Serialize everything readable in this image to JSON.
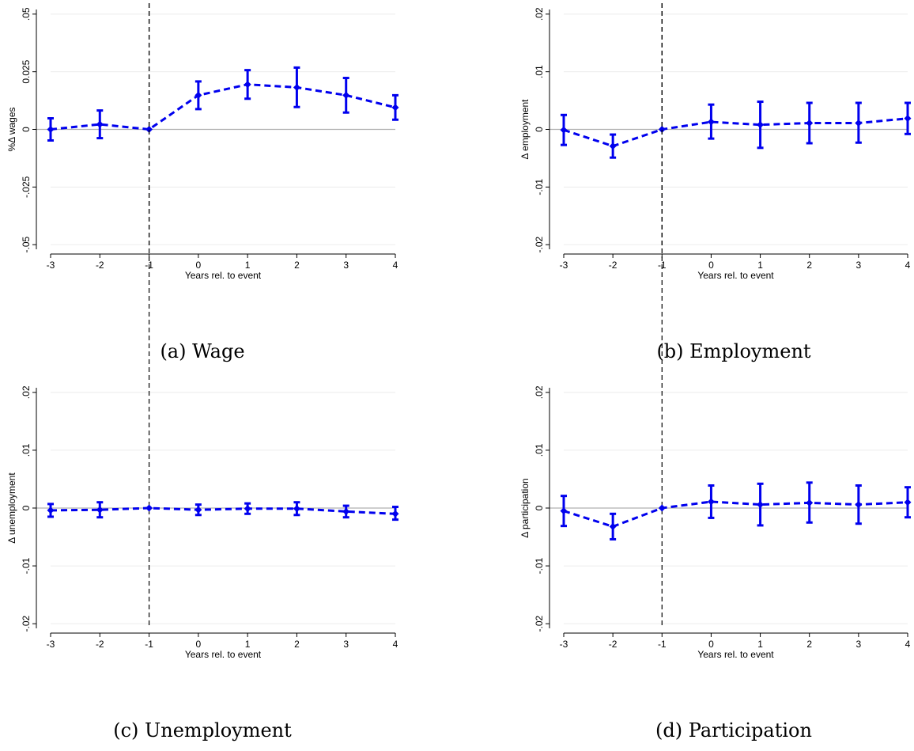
{
  "chart_data": [
    {
      "type": "line",
      "caption": "(a) Wage",
      "ylabel": "%Δ wages",
      "xlabel": "Years rel. to event",
      "x": [
        -3,
        -2,
        -1,
        0,
        1,
        2,
        3,
        4
      ],
      "xticks": [
        "-3",
        "-2",
        "-1",
        "0",
        "1",
        "2",
        "3",
        "4"
      ],
      "yticks": [
        {
          "v": -0.05,
          "t": "-.05"
        },
        {
          "v": -0.025,
          "t": "-.025"
        },
        {
          "v": 0,
          "t": "0"
        },
        {
          "v": 0.025,
          "t": "0.025"
        },
        {
          "v": 0.05,
          "t": ".05"
        }
      ],
      "ylim": [
        -0.052,
        0.052
      ],
      "event_line_x": -1,
      "reference_line_y": 0,
      "series": [
        {
          "estimate": [
            0.0,
            0.0022,
            0.0,
            0.0148,
            0.0195,
            0.0182,
            0.0148,
            0.0095
          ],
          "ci_low": [
            -0.0048,
            -0.0038,
            0.0,
            0.0088,
            0.0133,
            0.0097,
            0.0073,
            0.0042
          ],
          "ci_high": [
            0.0048,
            0.0082,
            0.0,
            0.0208,
            0.0257,
            0.0268,
            0.0223,
            0.0148
          ]
        }
      ]
    },
    {
      "type": "line",
      "caption": "(b) Employment",
      "ylabel": "Δ employment",
      "xlabel": "Years rel. to event",
      "x": [
        -3,
        -2,
        -1,
        0,
        1,
        2,
        3,
        4
      ],
      "xticks": [
        "-3",
        "-2",
        "-1",
        "0",
        "1",
        "2",
        "3",
        "4"
      ],
      "yticks": [
        {
          "v": -0.02,
          "t": "-.02"
        },
        {
          "v": -0.01,
          "t": "-.01"
        },
        {
          "v": 0,
          "t": "0"
        },
        {
          "v": 0.01,
          "t": ".01"
        },
        {
          "v": 0.02,
          "t": ".02"
        }
      ],
      "ylim": [
        -0.0208,
        0.0208
      ],
      "event_line_x": -1,
      "reference_line_y": 0,
      "series": [
        {
          "estimate": [
            -0.0001,
            -0.0029,
            0.0,
            0.0013,
            0.0008,
            0.0011,
            0.0011,
            0.0019
          ],
          "ci_low": [
            -0.0027,
            -0.0049,
            0.0,
            -0.0016,
            -0.0032,
            -0.0024,
            -0.0023,
            -0.0008
          ],
          "ci_high": [
            0.0025,
            -0.0009,
            0.0,
            0.0043,
            0.0048,
            0.0046,
            0.0046,
            0.0046
          ]
        }
      ]
    },
    {
      "type": "line",
      "caption": "(c) Unemployment",
      "ylabel": "Δ unemployment",
      "xlabel": "Years rel. to event",
      "x": [
        -3,
        -2,
        -1,
        0,
        1,
        2,
        3,
        4
      ],
      "xticks": [
        "-3",
        "-2",
        "-1",
        "0",
        "1",
        "2",
        "3",
        "4"
      ],
      "yticks": [
        {
          "v": -0.02,
          "t": "-.02"
        },
        {
          "v": -0.01,
          "t": "-.01"
        },
        {
          "v": 0,
          "t": "0"
        },
        {
          "v": 0.01,
          "t": ".01"
        },
        {
          "v": 0.02,
          "t": ".02"
        }
      ],
      "ylim": [
        -0.0208,
        0.0208
      ],
      "event_line_x": -1,
      "reference_line_y": 0,
      "series": [
        {
          "estimate": [
            -0.0004,
            -0.0003,
            0.0,
            -0.0003,
            -0.0001,
            -0.0001,
            -0.0006,
            -0.001
          ],
          "ci_low": [
            -0.0015,
            -0.0016,
            0.0,
            -0.0012,
            -0.001,
            -0.0012,
            -0.0016,
            -0.002
          ],
          "ci_high": [
            0.0007,
            0.001,
            0.0,
            0.0006,
            0.0008,
            0.001,
            0.0004,
            0.0002
          ]
        }
      ]
    },
    {
      "type": "line",
      "caption": "(d) Participation",
      "ylabel": "Δ participation",
      "xlabel": "Years rel. to event",
      "x": [
        -3,
        -2,
        -1,
        0,
        1,
        2,
        3,
        4
      ],
      "xticks": [
        "-3",
        "-2",
        "-1",
        "0",
        "1",
        "2",
        "3",
        "4"
      ],
      "yticks": [
        {
          "v": -0.02,
          "t": "-.02"
        },
        {
          "v": -0.01,
          "t": "-.01"
        },
        {
          "v": 0,
          "t": "0"
        },
        {
          "v": 0.01,
          "t": ".01"
        },
        {
          "v": 0.02,
          "t": ".02"
        }
      ],
      "ylim": [
        -0.0208,
        0.0208
      ],
      "event_line_x": -1,
      "reference_line_y": 0,
      "series": [
        {
          "estimate": [
            -0.0005,
            -0.0032,
            0.0,
            0.0011,
            0.0006,
            0.0009,
            0.0006,
            0.001
          ],
          "ci_low": [
            -0.0031,
            -0.0054,
            0.0,
            -0.0017,
            -0.003,
            -0.0025,
            -0.0027,
            -0.0016
          ],
          "ci_high": [
            0.0021,
            -0.001,
            0.0,
            0.0039,
            0.0042,
            0.0044,
            0.0039,
            0.0036
          ]
        }
      ]
    }
  ],
  "colors": {
    "series": "#0000ee",
    "event_line": "#000000",
    "reference_line": "#b0b0b0",
    "gridline": "#ececec",
    "axis": "#000000",
    "caption": "#000000"
  }
}
